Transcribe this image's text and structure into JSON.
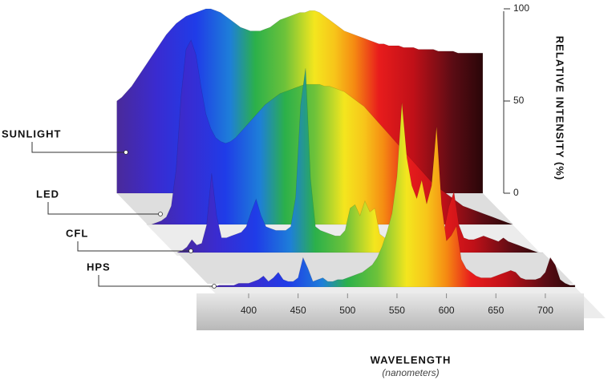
{
  "chart_data": {
    "type": "area",
    "x_label": "WAVELENGTH",
    "x_sublabel": "(nanometers)",
    "y_label": "RELATIVE INTENSITY (%)",
    "x": [
      360,
      365,
      370,
      375,
      380,
      385,
      390,
      395,
      400,
      405,
      410,
      415,
      420,
      425,
      430,
      435,
      440,
      445,
      450,
      455,
      460,
      465,
      470,
      475,
      480,
      485,
      490,
      495,
      500,
      505,
      510,
      515,
      520,
      525,
      530,
      535,
      540,
      545,
      550,
      555,
      560,
      565,
      570,
      575,
      580,
      585,
      590,
      595,
      600,
      605,
      610,
      615,
      620,
      625,
      630,
      635,
      640,
      645,
      650,
      655,
      660,
      665,
      670,
      675,
      680,
      685,
      690,
      695,
      700,
      705,
      710,
      715,
      720,
      725,
      730
    ],
    "series": [
      {
        "name": "SUNLIGHT",
        "values": [
          50,
          52,
          55,
          58,
          62,
          66,
          70,
          74,
          78,
          82,
          86,
          89,
          92,
          94,
          96,
          97,
          98,
          99,
          100,
          100,
          99,
          98,
          96,
          94,
          92,
          90,
          89,
          88,
          88,
          88,
          89,
          90,
          92,
          94,
          95,
          96,
          97,
          98,
          98,
          99,
          99,
          98,
          96,
          94,
          92,
          90,
          88,
          87,
          86,
          85,
          84,
          83,
          82,
          81,
          81,
          80,
          80,
          80,
          79,
          79,
          79,
          78,
          78,
          78,
          78,
          77,
          77,
          77,
          77,
          76,
          76,
          76,
          76,
          76,
          76
        ]
      },
      {
        "name": "LED",
        "values": [
          0,
          0,
          1,
          2,
          4,
          10,
          30,
          70,
          95,
          100,
          92,
          75,
          60,
          52,
          47,
          45,
          44,
          45,
          47,
          50,
          53,
          56,
          59,
          62,
          65,
          67,
          69,
          71,
          72,
          73,
          74,
          75,
          76,
          76,
          76,
          76,
          75,
          75,
          74,
          73,
          72,
          70,
          68,
          66,
          64,
          61,
          58,
          55,
          52,
          49,
          46,
          43,
          40,
          37,
          34,
          31,
          28,
          25,
          22,
          20,
          18,
          16,
          14,
          12,
          10,
          9,
          8,
          7,
          6,
          5,
          4,
          3,
          2,
          1,
          0
        ]
      },
      {
        "name": "CFL",
        "values": [
          0,
          1,
          3,
          7,
          4,
          5,
          15,
          43,
          20,
          8,
          8,
          9,
          10,
          11,
          14,
          22,
          29,
          20,
          14,
          13,
          12,
          12,
          12,
          14,
          30,
          80,
          100,
          40,
          14,
          12,
          11,
          10,
          9,
          9,
          12,
          24,
          26,
          20,
          28,
          22,
          24,
          10,
          8,
          7,
          7,
          7,
          8,
          8,
          9,
          10,
          12,
          20,
          14,
          10,
          12,
          25,
          33,
          15,
          8,
          7,
          7,
          8,
          9,
          8,
          7,
          6,
          8,
          6,
          5,
          4,
          3,
          2,
          1,
          0,
          0
        ]
      },
      {
        "name": "HPS",
        "values": [
          0,
          0,
          1,
          1,
          1,
          1,
          2,
          2,
          2,
          3,
          4,
          6,
          3,
          5,
          8,
          4,
          3,
          3,
          5,
          16,
          10,
          3,
          4,
          5,
          3,
          3,
          4,
          4,
          5,
          6,
          7,
          8,
          10,
          12,
          16,
          22,
          30,
          40,
          60,
          100,
          70,
          55,
          48,
          58,
          45,
          55,
          87,
          45,
          25,
          28,
          33,
          15,
          10,
          8,
          6,
          5,
          5,
          5,
          6,
          7,
          8,
          9,
          8,
          5,
          4,
          4,
          4,
          5,
          8,
          16,
          12,
          4,
          2,
          1,
          1
        ]
      }
    ],
    "xlim": [
      360,
      730
    ],
    "xticks": [
      400,
      450,
      500,
      550,
      600,
      650,
      700
    ],
    "ylim": [
      0,
      100
    ],
    "yticks": [
      0,
      50,
      100
    ]
  }
}
